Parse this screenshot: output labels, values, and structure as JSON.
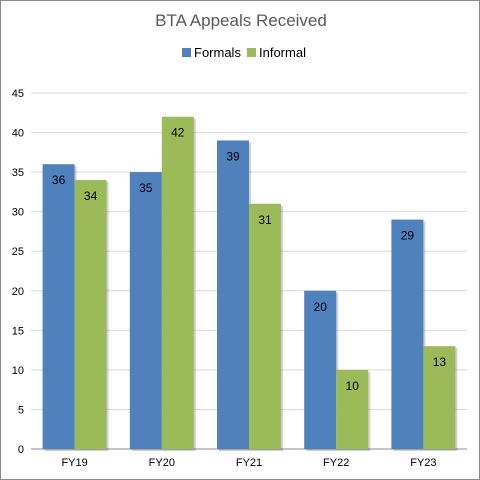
{
  "chart_data": {
    "type": "bar",
    "title": "BTA Appeals Received",
    "categories": [
      "FY19",
      "FY20",
      "FY21",
      "FY22",
      "FY23"
    ],
    "series": [
      {
        "name": "Formals",
        "color": "#4f81bd",
        "values": [
          36,
          35,
          39,
          20,
          29
        ]
      },
      {
        "name": "Informal",
        "color": "#9bbb59",
        "values": [
          34,
          42,
          31,
          10,
          13
        ]
      }
    ],
    "ylim": [
      0,
      45
    ],
    "yticks": [
      0,
      5,
      10,
      15,
      20,
      25,
      30,
      35,
      40,
      45
    ],
    "grid": true,
    "legend": "top"
  }
}
